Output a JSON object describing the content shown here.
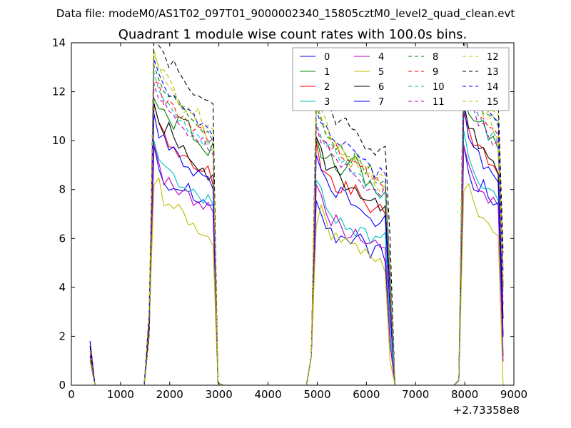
{
  "chart_data": {
    "type": "line",
    "suptitle": "Data file: modeM0/AS1T02_097T01_9000002340_15805cztM0_level2_quad_clean.evt",
    "title": "Quadrant 1 module wise count rates with 100.0s bins.",
    "xlabel": "",
    "ylabel": "",
    "xlim": [
      0,
      9000
    ],
    "ylim": [
      0,
      14
    ],
    "xticks": [
      0,
      1000,
      2000,
      3000,
      4000,
      5000,
      6000,
      7000,
      8000,
      9000
    ],
    "yticks": [
      0,
      2,
      4,
      6,
      8,
      10,
      12,
      14
    ],
    "x_offset_label": "+2.73358e8",
    "grid": false,
    "legend_position": "top-right",
    "segments": [
      {
        "x_start": 381,
        "x_end": 481,
        "step": 100
      },
      {
        "x_start": 1481,
        "x_end": 2981,
        "step": 100
      },
      {
        "x_start": 4881,
        "x_end": 6481,
        "step": 100
      },
      {
        "x_start": 7881,
        "x_end": 8781,
        "step": 100
      }
    ],
    "series": [
      {
        "name": "0",
        "color": "#0000ff",
        "dash": "solid",
        "profile": [
          9.8,
          8.7,
          8.4,
          8.0,
          8.1,
          7.9,
          8.4,
          7.6,
          7.4,
          7.8,
          7.2,
          7.3
        ],
        "offset": -2.8
      },
      {
        "name": "1",
        "color": "#008000",
        "dash": "solid",
        "profile": [
          11.9,
          11.1,
          11.4,
          10.8,
          10.6,
          10.9,
          11.1,
          10.0,
          10.2,
          9.6,
          9.4,
          9.8
        ],
        "offset": -2.6
      },
      {
        "name": "2",
        "color": "#ff0000",
        "dash": "solid",
        "profile": [
          11.3,
          10.5,
          10.2,
          9.5,
          9.8,
          9.4,
          9.6,
          9.1,
          8.9,
          8.6,
          8.9,
          8.3
        ],
        "offset": -2.4
      },
      {
        "name": "3",
        "color": "#00bfbf",
        "dash": "solid",
        "profile": [
          10.2,
          9.4,
          8.9,
          8.6,
          8.4,
          8.2,
          8.0,
          8.3,
          7.8,
          7.6,
          7.9,
          7.5
        ],
        "offset": -2.5
      },
      {
        "name": "4",
        "color": "#bf00bf",
        "dash": "solid",
        "profile": [
          10.0,
          9.1,
          8.3,
          8.5,
          7.9,
          7.8,
          8.1,
          7.2,
          7.6,
          7.4,
          7.3,
          7.0
        ],
        "offset": -2.6
      },
      {
        "name": "5",
        "color": "#bfbf00",
        "dash": "solid",
        "profile": [
          8.0,
          8.4,
          7.4,
          7.5,
          7.1,
          7.2,
          6.8,
          6.6,
          6.4,
          6.3,
          6.1,
          5.8
        ],
        "offset": -2.0
      },
      {
        "name": "6",
        "color": "#000000",
        "dash": "solid",
        "profile": [
          11.6,
          10.9,
          10.4,
          10.7,
          9.9,
          9.5,
          9.7,
          9.2,
          8.9,
          9.0,
          8.6,
          8.8
        ],
        "offset": -2.4
      },
      {
        "name": "7",
        "color": "#0000ff",
        "dash": "solid",
        "profile": [
          11.2,
          10.2,
          10.0,
          9.4,
          9.7,
          9.1,
          9.0,
          8.7,
          8.8,
          8.3,
          8.5,
          8.1
        ],
        "offset": -2.5
      },
      {
        "name": "8",
        "color": "#008000",
        "dash": "dashed",
        "profile": [
          13.3,
          12.5,
          12.0,
          11.4,
          11.8,
          11.2,
          11.5,
          10.8,
          10.9,
          10.3,
          10.5,
          10.1
        ],
        "offset": -2.7
      },
      {
        "name": "9",
        "color": "#ff0000",
        "dash": "dashed",
        "profile": [
          12.4,
          12.1,
          11.6,
          11.8,
          11.2,
          11.0,
          10.9,
          10.6,
          10.3,
          10.5,
          10.1,
          10.0
        ],
        "offset": -2.6
      },
      {
        "name": "10",
        "color": "#00bfbf",
        "dash": "dashed",
        "profile": [
          12.6,
          11.9,
          11.7,
          11.3,
          11.1,
          10.8,
          10.6,
          10.2,
          10.4,
          9.8,
          9.9,
          9.6
        ],
        "offset": -2.7
      },
      {
        "name": "11",
        "color": "#bf00bf",
        "dash": "dashed",
        "profile": [
          12.2,
          11.8,
          11.3,
          11.0,
          10.7,
          10.9,
          10.3,
          10.1,
          9.8,
          10.0,
          9.7,
          9.5
        ],
        "offset": -2.6
      },
      {
        "name": "12",
        "color": "#bfbf00",
        "dash": "dashed",
        "profile": [
          13.9,
          13.1,
          12.7,
          12.3,
          12.0,
          11.5,
          11.8,
          11.1,
          11.2,
          10.7,
          10.9,
          10.6
        ],
        "offset": -3.2
      },
      {
        "name": "13",
        "color": "#000000",
        "dash": "dashed",
        "profile": [
          14.6,
          14.0,
          13.4,
          13.0,
          13.2,
          12.7,
          12.4,
          12.1,
          11.7,
          11.4,
          11.9,
          11.6
        ],
        "offset": -3.0
      },
      {
        "name": "14",
        "color": "#0000ff",
        "dash": "dashed",
        "profile": [
          13.4,
          12.8,
          12.3,
          11.9,
          12.1,
          11.6,
          11.2,
          11.4,
          10.9,
          10.6,
          10.7,
          10.4
        ],
        "offset": -2.8
      },
      {
        "name": "15",
        "color": "#bfbf00",
        "dash": "dashed",
        "profile": [
          13.6,
          12.9,
          12.4,
          12.0,
          11.7,
          11.4,
          11.0,
          11.1,
          10.6,
          10.4,
          10.1,
          10.0
        ],
        "offset": -2.9
      }
    ]
  }
}
